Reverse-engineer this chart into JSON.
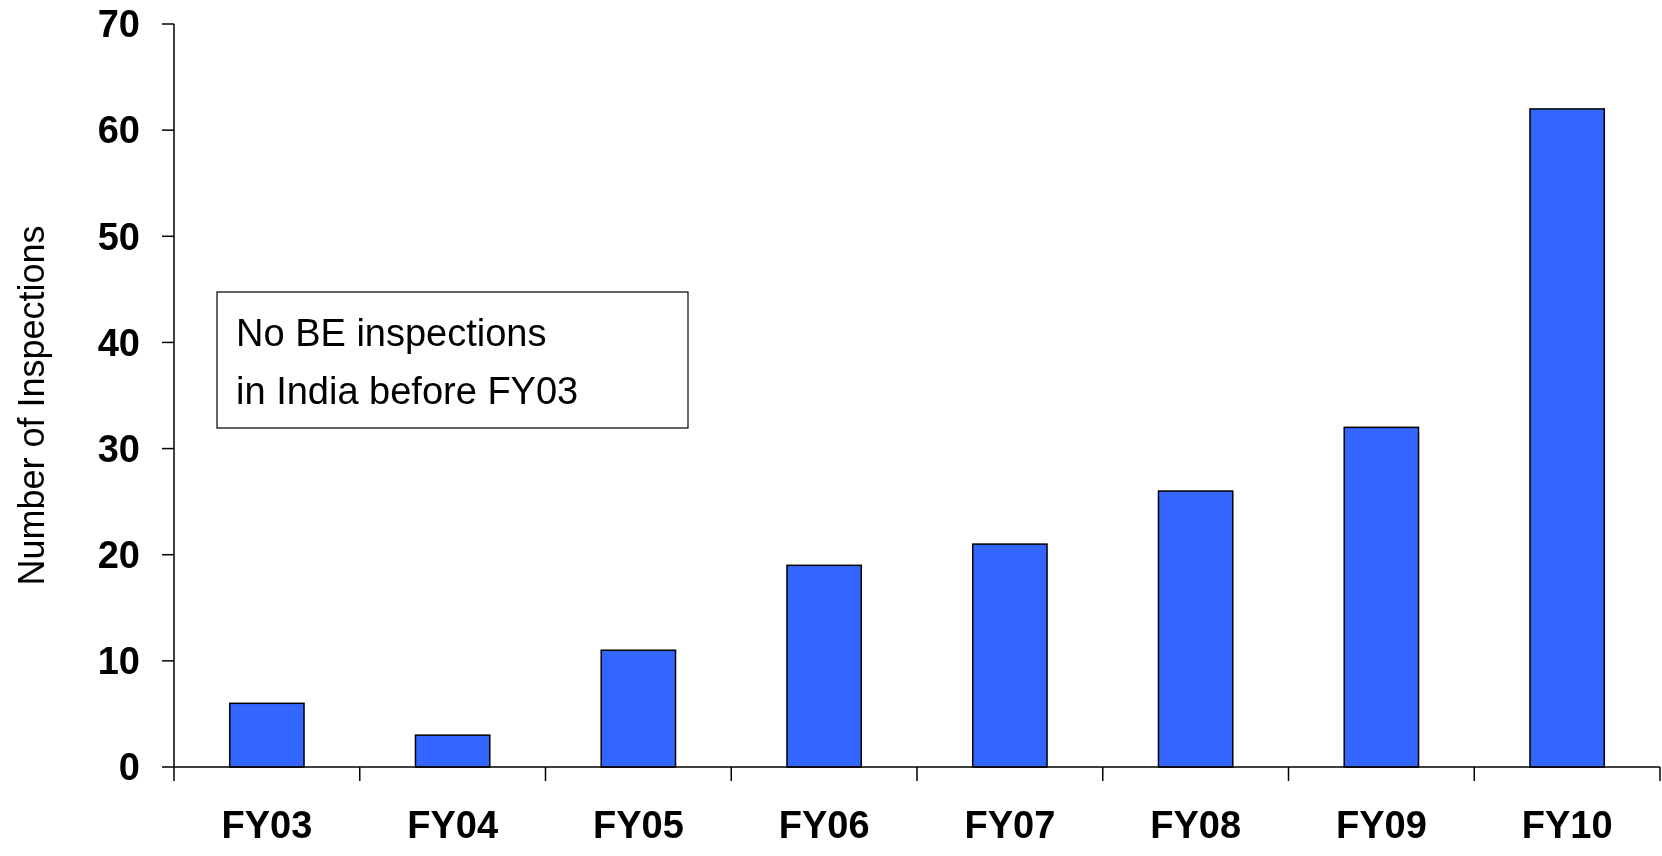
{
  "chart_data": {
    "type": "bar",
    "ylabel": "Number of Inspections",
    "categories": [
      "FY03",
      "FY04",
      "FY05",
      "FY06",
      "FY07",
      "FY08",
      "FY09",
      "FY10"
    ],
    "values": [
      6,
      3,
      11,
      19,
      21,
      26,
      32,
      62
    ],
    "color": "#3366ff",
    "ylim": [
      0,
      70
    ],
    "yticks": [
      0,
      10,
      20,
      30,
      40,
      50,
      60,
      70
    ],
    "grid": false,
    "annotations": [
      "No BE inspections\nin India before FY03"
    ]
  }
}
